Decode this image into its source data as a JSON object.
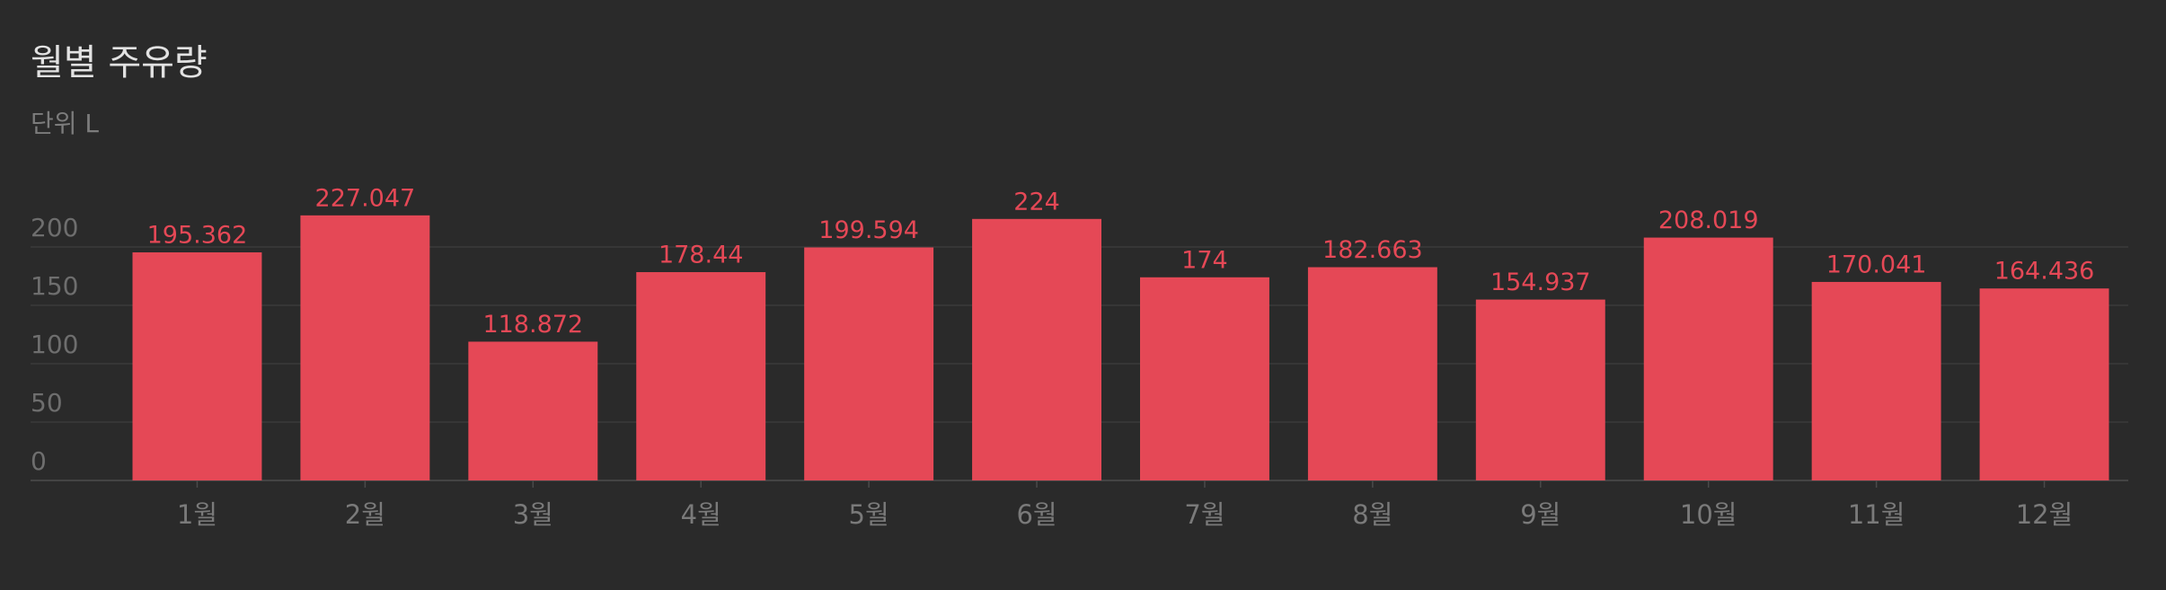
{
  "chart_data": {
    "type": "bar",
    "title": "월별 주유량",
    "subtitle": "단위 L",
    "categories": [
      "1월",
      "2월",
      "3월",
      "4월",
      "5월",
      "6월",
      "7월",
      "8월",
      "9월",
      "10월",
      "11월",
      "12월"
    ],
    "values": [
      195.362,
      227.047,
      118.872,
      178.44,
      199.594,
      224,
      174,
      182.663,
      154.937,
      208.019,
      170.041,
      164.436
    ],
    "color": "#e54856",
    "ylim": [
      0,
      250
    ],
    "yticks": [
      0,
      50,
      100,
      150,
      200
    ],
    "grid": true
  }
}
